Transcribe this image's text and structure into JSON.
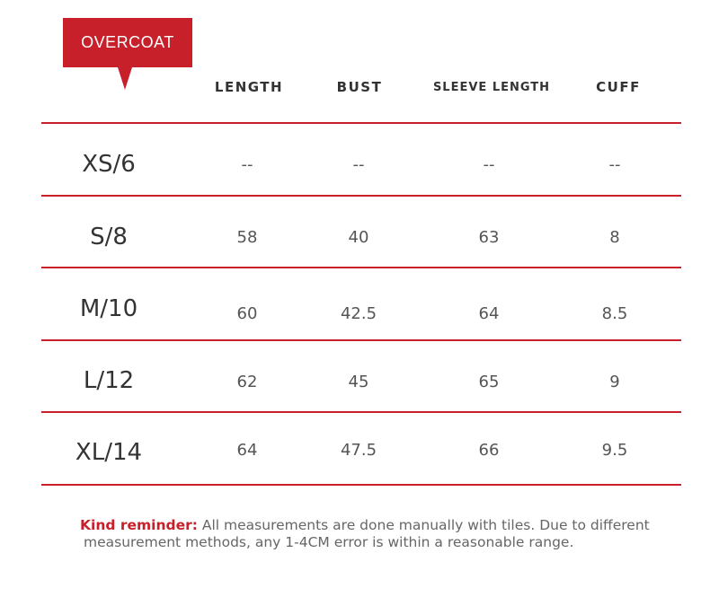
{
  "tag": {
    "label": "OVERCOAT"
  },
  "columns": [
    "LENGTH",
    "BUST",
    "SLEEVE LENGTH",
    "CUFF"
  ],
  "rows": [
    {
      "size": "XS/6",
      "values": [
        "--",
        "--",
        "--",
        "--"
      ]
    },
    {
      "size": "S/8",
      "values": [
        "58",
        "40",
        "63",
        "8"
      ]
    },
    {
      "size": "M/10",
      "values": [
        "60",
        "42.5",
        "64",
        "8.5"
      ]
    },
    {
      "size": "L/12",
      "values": [
        "62",
        "45",
        "65",
        "9"
      ]
    },
    {
      "size": "XL/14",
      "values": [
        "64",
        "47.5",
        "66",
        "9.5"
      ]
    }
  ],
  "note": {
    "lead": "Kind reminder:",
    "line1": " All measurements are done manually with tiles. Due to different",
    "line2": "measurement methods, any 1-4CM error is within a reasonable range."
  },
  "colors": {
    "accent": "#c8202a",
    "text": "#333333",
    "muted": "#666666"
  }
}
